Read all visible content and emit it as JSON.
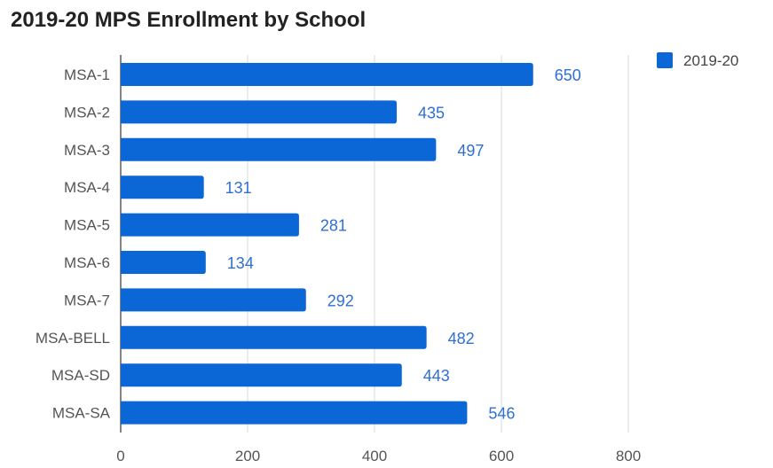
{
  "chart_data": {
    "type": "bar",
    "orientation": "horizontal",
    "title": "2019-20 MPS Enrollment by School",
    "categories": [
      "MSA-1",
      "MSA-2",
      "MSA-3",
      "MSA-4",
      "MSA-5",
      "MSA-6",
      "MSA-7",
      "MSA-BELL",
      "MSA-SD",
      "MSA-SA"
    ],
    "series": [
      {
        "name": "2019-20",
        "values": [
          650,
          435,
          497,
          131,
          281,
          134,
          292,
          482,
          443,
          546
        ],
        "color": "#0b66d6"
      }
    ],
    "xticks": [
      0,
      200,
      400,
      600,
      800
    ],
    "xlim": [
      0,
      800
    ],
    "grid": true,
    "legend_position": "top-right",
    "data_label_color": "#2f6fd1"
  }
}
